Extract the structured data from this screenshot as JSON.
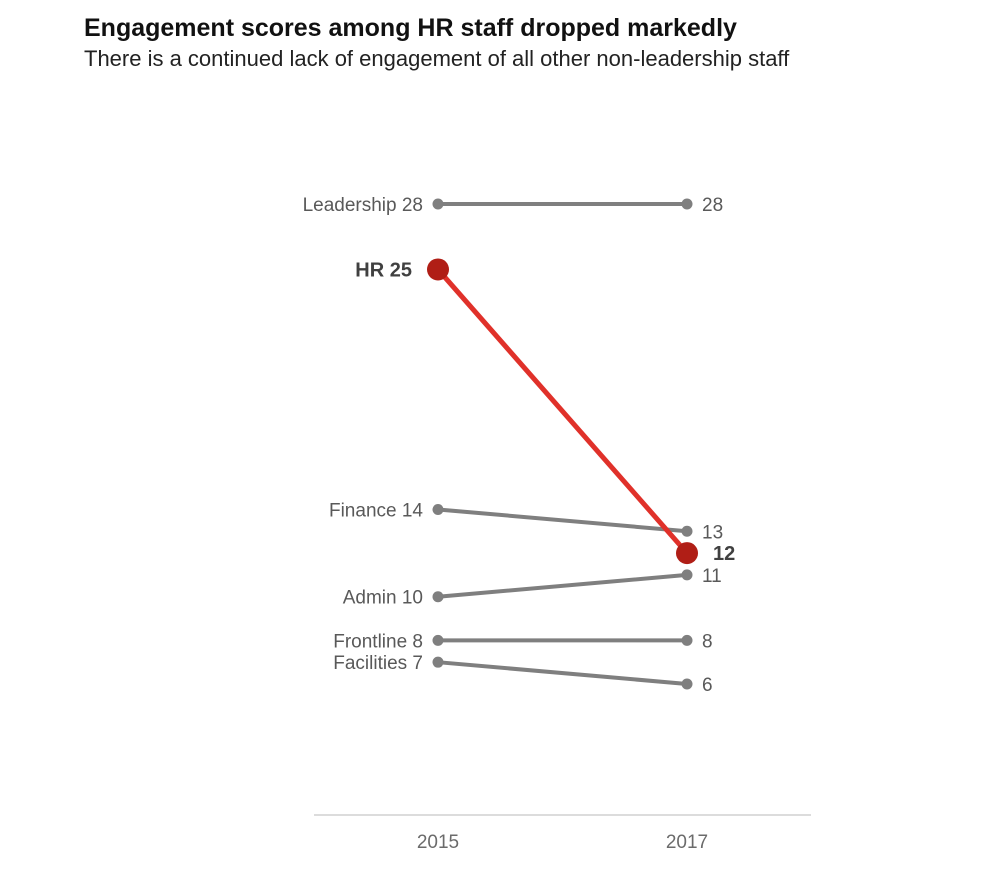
{
  "chart_data": {
    "type": "line",
    "title": "Engagement scores among HR staff dropped markedly",
    "subtitle": "There is a continued lack of engagement of all other non-leadership staff",
    "x": [
      "2015",
      "2017"
    ],
    "series": [
      {
        "name": "Leadership",
        "values": [
          28,
          28
        ],
        "highlight": false
      },
      {
        "name": "HR",
        "values": [
          25,
          12
        ],
        "highlight": true
      },
      {
        "name": "Finance",
        "values": [
          14,
          13
        ],
        "highlight": false
      },
      {
        "name": "Admin",
        "values": [
          10,
          11
        ],
        "highlight": false
      },
      {
        "name": "Frontline",
        "values": [
          8,
          8
        ],
        "highlight": false
      },
      {
        "name": "Facilities",
        "values": [
          7,
          6
        ],
        "highlight": false
      }
    ],
    "xlabel": "",
    "ylabel": "",
    "ylim": [
      6,
      28
    ],
    "grid": false,
    "legend": "none",
    "colors": {
      "default_line": "#7f7f7f",
      "highlight_line": "#e0312a",
      "highlight_marker": "#b01e16",
      "axis": "#d0d0d0"
    }
  }
}
